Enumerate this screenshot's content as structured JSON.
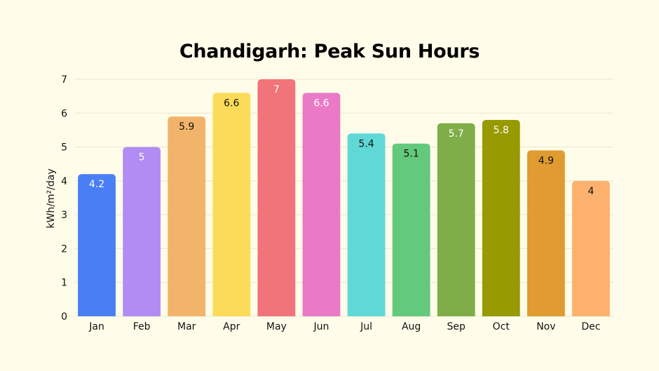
{
  "chart_data": {
    "type": "bar",
    "title": "Chandigarh: Peak Sun Hours",
    "xlabel": "",
    "ylabel": "kWh/m²/day",
    "ylim": [
      0,
      7
    ],
    "yticks": [
      0,
      1,
      2,
      3,
      4,
      5,
      6,
      7
    ],
    "grid": true,
    "categories": [
      "Jan",
      "Feb",
      "Mar",
      "Apr",
      "May",
      "Jun",
      "Jul",
      "Aug",
      "Sep",
      "Oct",
      "Nov",
      "Dec"
    ],
    "values": [
      4.2,
      5,
      5.9,
      6.6,
      7,
      6.6,
      5.4,
      5.1,
      5.7,
      5.8,
      4.9,
      4
    ],
    "colors": [
      "#4a7ef5",
      "#b18cf2",
      "#f2b46a",
      "#fddb5a",
      "#f07479",
      "#ea7ac6",
      "#5fd8d6",
      "#63c97c",
      "#7fad47",
      "#979a00",
      "#e09c30",
      "#fdb16f"
    ],
    "label_colors": [
      "#ffffff",
      "#ffffff",
      "#111111",
      "#111111",
      "#ffffff",
      "#ffffff",
      "#111111",
      "#111111",
      "#ffffff",
      "#ffffff",
      "#111111",
      "#111111"
    ]
  }
}
